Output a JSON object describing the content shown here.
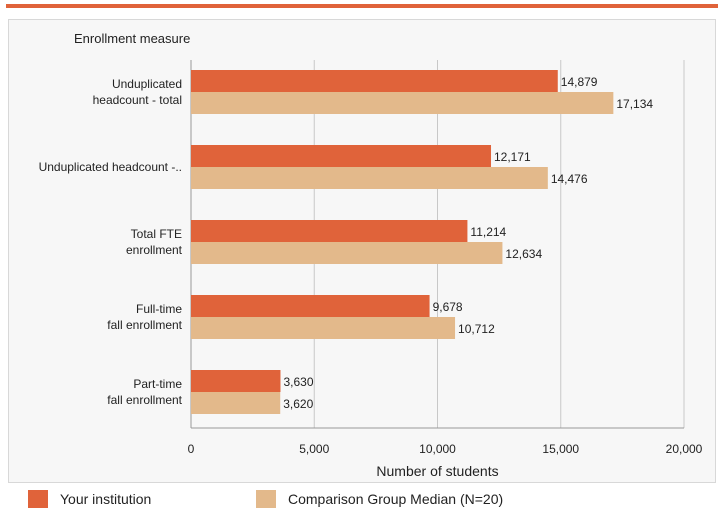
{
  "colors": {
    "accent_rule": "#e0633a",
    "series_institution": "#e0633a",
    "series_comparison": "#e3b98b",
    "grid": "#c8c8c8"
  },
  "legend": {
    "items": [
      {
        "label": "Your institution",
        "color": "#e0633a"
      },
      {
        "label": "Comparison Group Median (N=20)",
        "color": "#e3b98b"
      }
    ]
  },
  "chart_data": {
    "type": "bar",
    "orientation": "horizontal",
    "category_axis_title": "Enrollment measure",
    "xlabel": "Number of students",
    "xlim": [
      0,
      20000
    ],
    "xticks": [
      "0",
      "5,000",
      "10,000",
      "15,000",
      "20,000"
    ],
    "xtick_values": [
      0,
      5000,
      10000,
      15000,
      20000
    ],
    "grid": true,
    "legend_position": "bottom",
    "categories": [
      [
        "Unduplicated",
        "headcount - total"
      ],
      [
        "Unduplicated headcount -.."
      ],
      [
        "Total FTE",
        "enrollment"
      ],
      [
        "Full-time",
        "fall enrollment"
      ],
      [
        "Part-time",
        "fall enrollment"
      ]
    ],
    "series": [
      {
        "name": "Your institution",
        "values": [
          14879,
          12171,
          11214,
          9678,
          3630
        ],
        "labels": [
          "14,879",
          "12,171",
          "11,214",
          "9,678",
          "3,630"
        ]
      },
      {
        "name": "Comparison Group Median (N=20)",
        "values": [
          17134,
          14476,
          12634,
          10712,
          3620
        ],
        "labels": [
          "17,134",
          "14,476",
          "12,634",
          "10,712",
          "3,620"
        ]
      }
    ]
  }
}
